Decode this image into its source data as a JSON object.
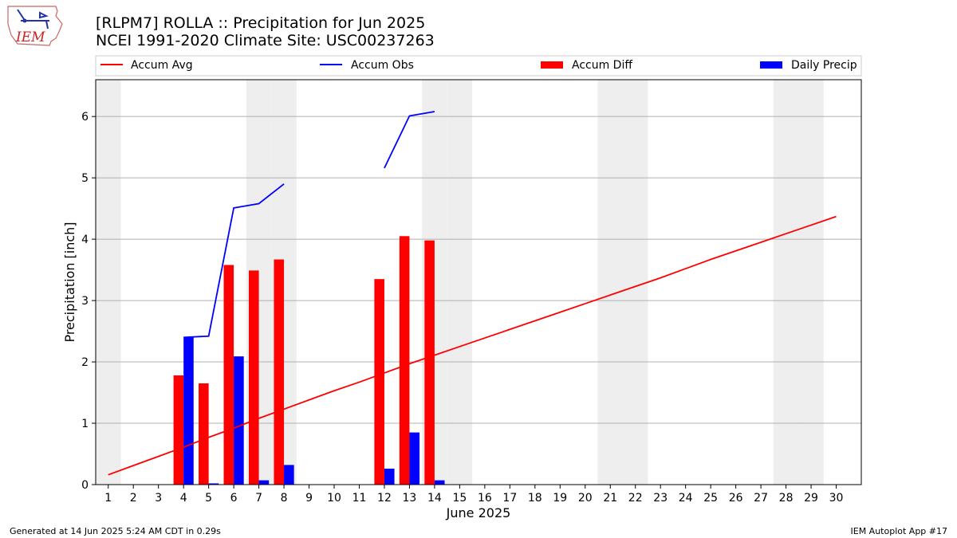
{
  "header": {
    "title_line1": "[RLPM7] ROLLA :: Precipitation for Jun 2025",
    "title_line2": "NCEI 1991-2020 Climate Site: USC00237263"
  },
  "logo": {
    "text": "IEM"
  },
  "footer": {
    "left": "Generated at 14 Jun 2025 5:24 AM CDT in 0.29s",
    "right": "IEM Autoplot App #17"
  },
  "colors": {
    "avg": "#ff0000",
    "obs": "#0000ff",
    "diff": "#ff0000",
    "daily": "#0000ff",
    "weekend": "#eeeeee",
    "grid": "#b0b0b0"
  },
  "chart_data": {
    "type": "bar",
    "xlabel": "June 2025",
    "ylabel": "Precipitation [inch]",
    "xlim": [
      0.5,
      31
    ],
    "ylim": [
      0,
      6.6
    ],
    "yticks": [
      0,
      1,
      2,
      3,
      4,
      5,
      6
    ],
    "grid": true,
    "legend_position": "top",
    "legend": [
      "Accum Avg",
      "Accum Obs",
      "Accum Diff",
      "Daily Precip"
    ],
    "days": [
      1,
      2,
      3,
      4,
      5,
      6,
      7,
      8,
      9,
      10,
      11,
      12,
      13,
      14,
      15,
      16,
      17,
      18,
      19,
      20,
      21,
      22,
      23,
      24,
      25,
      26,
      27,
      28,
      29,
      30
    ],
    "weekend_days": [
      1,
      7,
      8,
      14,
      15,
      21,
      22,
      28,
      29
    ],
    "series": [
      {
        "name": "Accum Avg",
        "kind": "line",
        "x": [
          1,
          2,
          3,
          4,
          5,
          6,
          7,
          8,
          9,
          10,
          11,
          12,
          13,
          14,
          15,
          16,
          17,
          18,
          19,
          20,
          21,
          22,
          23,
          24,
          25,
          26,
          27,
          28,
          29,
          30
        ],
        "values": [
          0.16,
          0.31,
          0.46,
          0.61,
          0.77,
          0.92,
          1.08,
          1.23,
          1.38,
          1.53,
          1.67,
          1.82,
          1.97,
          2.11,
          2.25,
          2.39,
          2.53,
          2.67,
          2.81,
          2.95,
          3.09,
          3.23,
          3.37,
          3.52,
          3.67,
          3.81,
          3.95,
          4.09,
          4.23,
          4.37
        ]
      },
      {
        "name": "Accum Obs",
        "kind": "line",
        "segments": [
          {
            "x": [
              4,
              5,
              6,
              7,
              8
            ],
            "values": [
              2.4,
              2.42,
              4.51,
              4.58,
              4.9
            ]
          },
          {
            "x": [
              12,
              13,
              14
            ],
            "values": [
              5.16,
              6.01,
              6.08
            ]
          }
        ]
      },
      {
        "name": "Accum Diff",
        "kind": "bar",
        "x": [
          4,
          5,
          6,
          7,
          8,
          12,
          13,
          14
        ],
        "values": [
          1.78,
          1.65,
          3.58,
          3.49,
          3.67,
          3.35,
          4.05,
          3.98
        ]
      },
      {
        "name": "Daily Precip",
        "kind": "bar",
        "x": [
          4,
          5,
          6,
          7,
          8,
          12,
          13,
          14
        ],
        "values": [
          2.4,
          0.02,
          2.09,
          0.07,
          0.32,
          0.26,
          0.85,
          0.07
        ]
      }
    ]
  }
}
